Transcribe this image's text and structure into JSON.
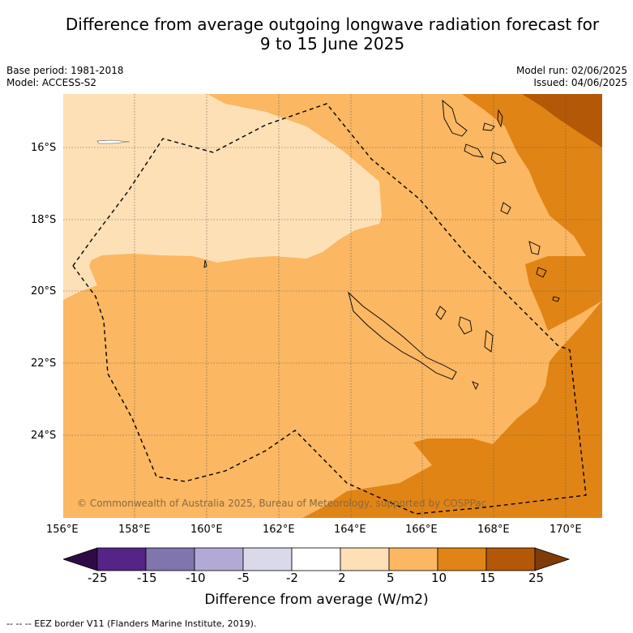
{
  "title_line1": "Difference from average outgoing longwave radiation forecast for",
  "title_line2": "9 to 15 June 2025",
  "base_period": "Base period: 1981-2018",
  "model": "Model: ACCESS-S2",
  "model_run": "Model run: 02/06/2025",
  "issued": "Issued: 04/06/2025",
  "copyright": "© Commonwealth of Australia 2025, Bureau of Meteorology, supported by COSPPac",
  "map": {
    "lon_range": [
      156,
      171
    ],
    "lat_range": [
      -14.5,
      -26.3
    ],
    "lon_ticks": [
      "156°E",
      "158°E",
      "160°E",
      "162°E",
      "164°E",
      "166°E",
      "168°E",
      "170°E"
    ],
    "lat_ticks": [
      "16°S",
      "18°S",
      "20°S",
      "22°S",
      "24°S"
    ],
    "gridlines": "dotted"
  },
  "colorbar": {
    "title": "Difference from average (W/m2)",
    "tick_labels": [
      "-25",
      "-15",
      "-10",
      "-5",
      "-2",
      "2",
      "5",
      "10",
      "15",
      "25"
    ],
    "colors": [
      "#2e0b45",
      "#562386",
      "#8075ad",
      "#b2aad4",
      "#d9d9ea",
      "#ffffff",
      "#fde0b6",
      "#fbb762",
      "#e08415",
      "#b35806",
      "#7f3b08"
    ]
  },
  "footer": "--  --  -- EEZ border V11 (Flanders Marine Institute, 2019)."
}
